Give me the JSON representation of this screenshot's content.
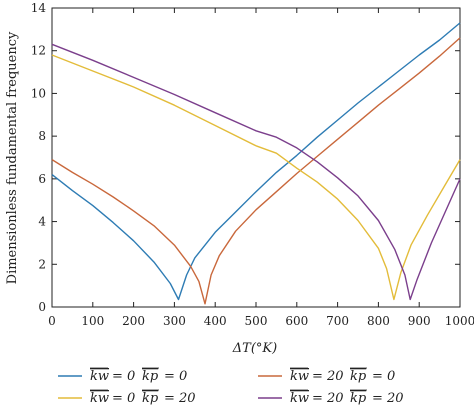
{
  "chart_data": {
    "type": "line",
    "xlabel": "ΔT(°K)",
    "ylabel": "Dimensionless fundamental frequency",
    "xlim": [
      0,
      1000
    ],
    "ylim": [
      0,
      14
    ],
    "xticks": [
      "0",
      "100",
      "200",
      "300",
      "400",
      "500",
      "600",
      "700",
      "800",
      "900",
      "1000"
    ],
    "yticks": [
      "0",
      "2",
      "4",
      "6",
      "8",
      "10",
      "12",
      "14"
    ],
    "grid": false,
    "legend_position": "bottom",
    "series": [
      {
        "name": "kw = 0   kp = 0",
        "color": "#2e7cb4",
        "points": [
          [
            0,
            6.2
          ],
          [
            50,
            5.45
          ],
          [
            100,
            4.75
          ],
          [
            150,
            3.95
          ],
          [
            200,
            3.1
          ],
          [
            250,
            2.1
          ],
          [
            290,
            1.1
          ],
          [
            310,
            0.35
          ],
          [
            330,
            1.5
          ],
          [
            350,
            2.3
          ],
          [
            400,
            3.5
          ],
          [
            450,
            4.45
          ],
          [
            500,
            5.4
          ],
          [
            550,
            6.3
          ],
          [
            600,
            7.1
          ],
          [
            650,
            7.95
          ],
          [
            700,
            8.75
          ],
          [
            750,
            9.55
          ],
          [
            800,
            10.3
          ],
          [
            850,
            11.05
          ],
          [
            900,
            11.8
          ],
          [
            950,
            12.5
          ],
          [
            1000,
            13.3
          ]
        ]
      },
      {
        "name": "kw = 20   kp = 0",
        "color": "#c9683c",
        "points": [
          [
            0,
            6.9
          ],
          [
            50,
            6.3
          ],
          [
            100,
            5.75
          ],
          [
            150,
            5.15
          ],
          [
            200,
            4.5
          ],
          [
            250,
            3.8
          ],
          [
            300,
            2.9
          ],
          [
            340,
            1.9
          ],
          [
            360,
            1.2
          ],
          [
            375,
            0.15
          ],
          [
            390,
            1.5
          ],
          [
            410,
            2.4
          ],
          [
            450,
            3.55
          ],
          [
            500,
            4.55
          ],
          [
            550,
            5.4
          ],
          [
            600,
            6.25
          ],
          [
            650,
            7.05
          ],
          [
            700,
            7.85
          ],
          [
            750,
            8.65
          ],
          [
            800,
            9.45
          ],
          [
            850,
            10.2
          ],
          [
            900,
            10.95
          ],
          [
            950,
            11.75
          ],
          [
            1000,
            12.6
          ]
        ]
      },
      {
        "name": "kw = 0   kp = 20",
        "color": "#e3bc3a",
        "points": [
          [
            0,
            11.8
          ],
          [
            100,
            11.05
          ],
          [
            200,
            10.3
          ],
          [
            300,
            9.45
          ],
          [
            400,
            8.5
          ],
          [
            500,
            7.55
          ],
          [
            550,
            7.2
          ],
          [
            600,
            6.5
          ],
          [
            650,
            5.85
          ],
          [
            700,
            5.05
          ],
          [
            750,
            4.05
          ],
          [
            800,
            2.75
          ],
          [
            820,
            1.8
          ],
          [
            838,
            0.35
          ],
          [
            855,
            1.6
          ],
          [
            880,
            2.9
          ],
          [
            920,
            4.3
          ],
          [
            960,
            5.6
          ],
          [
            1000,
            6.9
          ]
        ]
      },
      {
        "name": "kw = 20   kp = 20",
        "color": "#7b3f8c",
        "points": [
          [
            0,
            12.3
          ],
          [
            100,
            11.55
          ],
          [
            200,
            10.75
          ],
          [
            300,
            9.95
          ],
          [
            400,
            9.1
          ],
          [
            500,
            8.25
          ],
          [
            550,
            7.95
          ],
          [
            600,
            7.45
          ],
          [
            650,
            6.8
          ],
          [
            700,
            6.05
          ],
          [
            750,
            5.2
          ],
          [
            800,
            4.05
          ],
          [
            840,
            2.7
          ],
          [
            865,
            1.5
          ],
          [
            878,
            0.35
          ],
          [
            895,
            1.3
          ],
          [
            930,
            3.0
          ],
          [
            965,
            4.5
          ],
          [
            1000,
            6.0
          ]
        ]
      }
    ],
    "legend": [
      {
        "kw": "kw",
        "eq1": "= 0",
        "kp": "kp",
        "eq2": "= 0"
      },
      {
        "kw": "kw",
        "eq1": "= 20",
        "kp": "kp",
        "eq2": "= 0"
      },
      {
        "kw": "kw",
        "eq1": "= 0",
        "kp": "kp",
        "eq2": "= 20"
      },
      {
        "kw": "kw",
        "eq1": "= 20",
        "kp": "kp",
        "eq2": "= 20"
      }
    ]
  }
}
